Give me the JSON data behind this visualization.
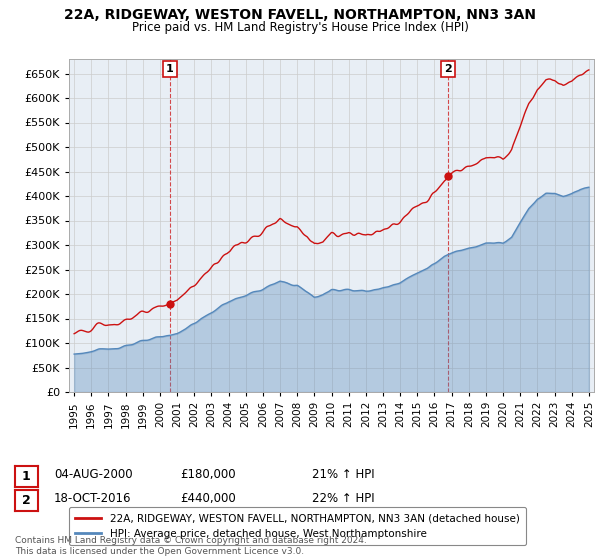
{
  "title": "22A, RIDGEWAY, WESTON FAVELL, NORTHAMPTON, NN3 3AN",
  "subtitle": "Price paid vs. HM Land Registry's House Price Index (HPI)",
  "legend_line1": "22A, RIDGEWAY, WESTON FAVELL, NORTHAMPTON, NN3 3AN (detached house)",
  "legend_line2": "HPI: Average price, detached house, West Northamptonshire",
  "annotation1_label": "1",
  "annotation1_date": "04-AUG-2000",
  "annotation1_price": "£180,000",
  "annotation1_hpi": "21% ↑ HPI",
  "annotation2_label": "2",
  "annotation2_date": "18-OCT-2016",
  "annotation2_price": "£440,000",
  "annotation2_hpi": "22% ↑ HPI",
  "footnote": "Contains HM Land Registry data © Crown copyright and database right 2024.\nThis data is licensed under the Open Government Licence v3.0.",
  "hpi_color": "#5588bb",
  "price_color": "#cc1111",
  "bg_plot": "#e8eef5",
  "background_color": "#ffffff",
  "grid_color": "#cccccc",
  "ylim": [
    0,
    680000
  ],
  "yticks": [
    0,
    50000,
    100000,
    150000,
    200000,
    250000,
    300000,
    350000,
    400000,
    450000,
    500000,
    550000,
    600000,
    650000
  ],
  "sale1_year": 2000.583,
  "sale1_price": 180000,
  "sale2_year": 2016.792,
  "sale2_price": 440000,
  "xmin": 1994.7,
  "xmax": 2025.3
}
